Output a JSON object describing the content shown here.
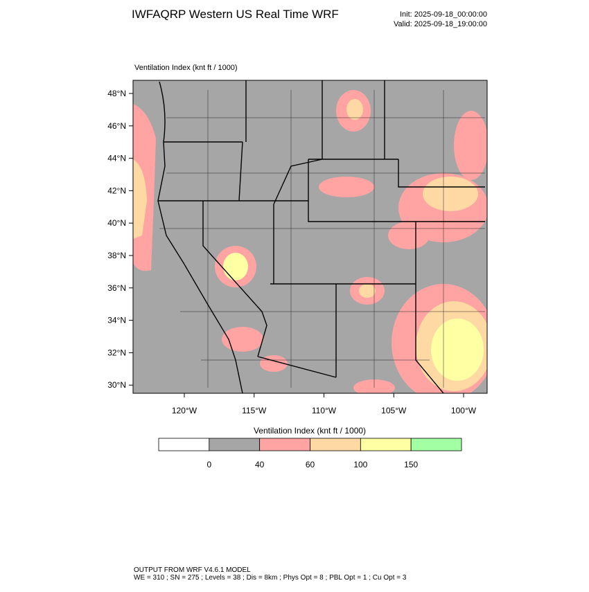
{
  "header": {
    "title": "IWFAQRP Western US Real Time WRF",
    "init": "Init: 2025-09-18_00:00:00",
    "valid": "Valid: 2025-09-18_19:00:00"
  },
  "map": {
    "label": "Ventilation Index   (knt ft / 1000)",
    "lat_labels": [
      "48°N",
      "46°N",
      "44°N",
      "42°N",
      "40°N",
      "38°N",
      "36°N",
      "34°N",
      "32°N",
      "30°N"
    ],
    "lon_labels": [
      "120°W",
      "115°W",
      "110°W",
      "105°W",
      "100°W"
    ]
  },
  "colorbar": {
    "title": "Ventilation Index   (knt ft / 1000)",
    "colors": [
      "#ffffff",
      "#a6a6a6",
      "#ffa3a3",
      "#ffd9a3",
      "#ffffa3",
      "#a3ffa3"
    ],
    "labels": [
      "0",
      "40",
      "60",
      "100",
      "150"
    ]
  },
  "footer": {
    "line1": "OUTPUT FROM WRF V4.6.1 MODEL",
    "line2": "WE = 310 ; SN = 275 ; Levels = 38 ; Dis = 8km ; Phys Opt = 8 ; PBL Opt = 1 ; Cu Opt = 3"
  }
}
